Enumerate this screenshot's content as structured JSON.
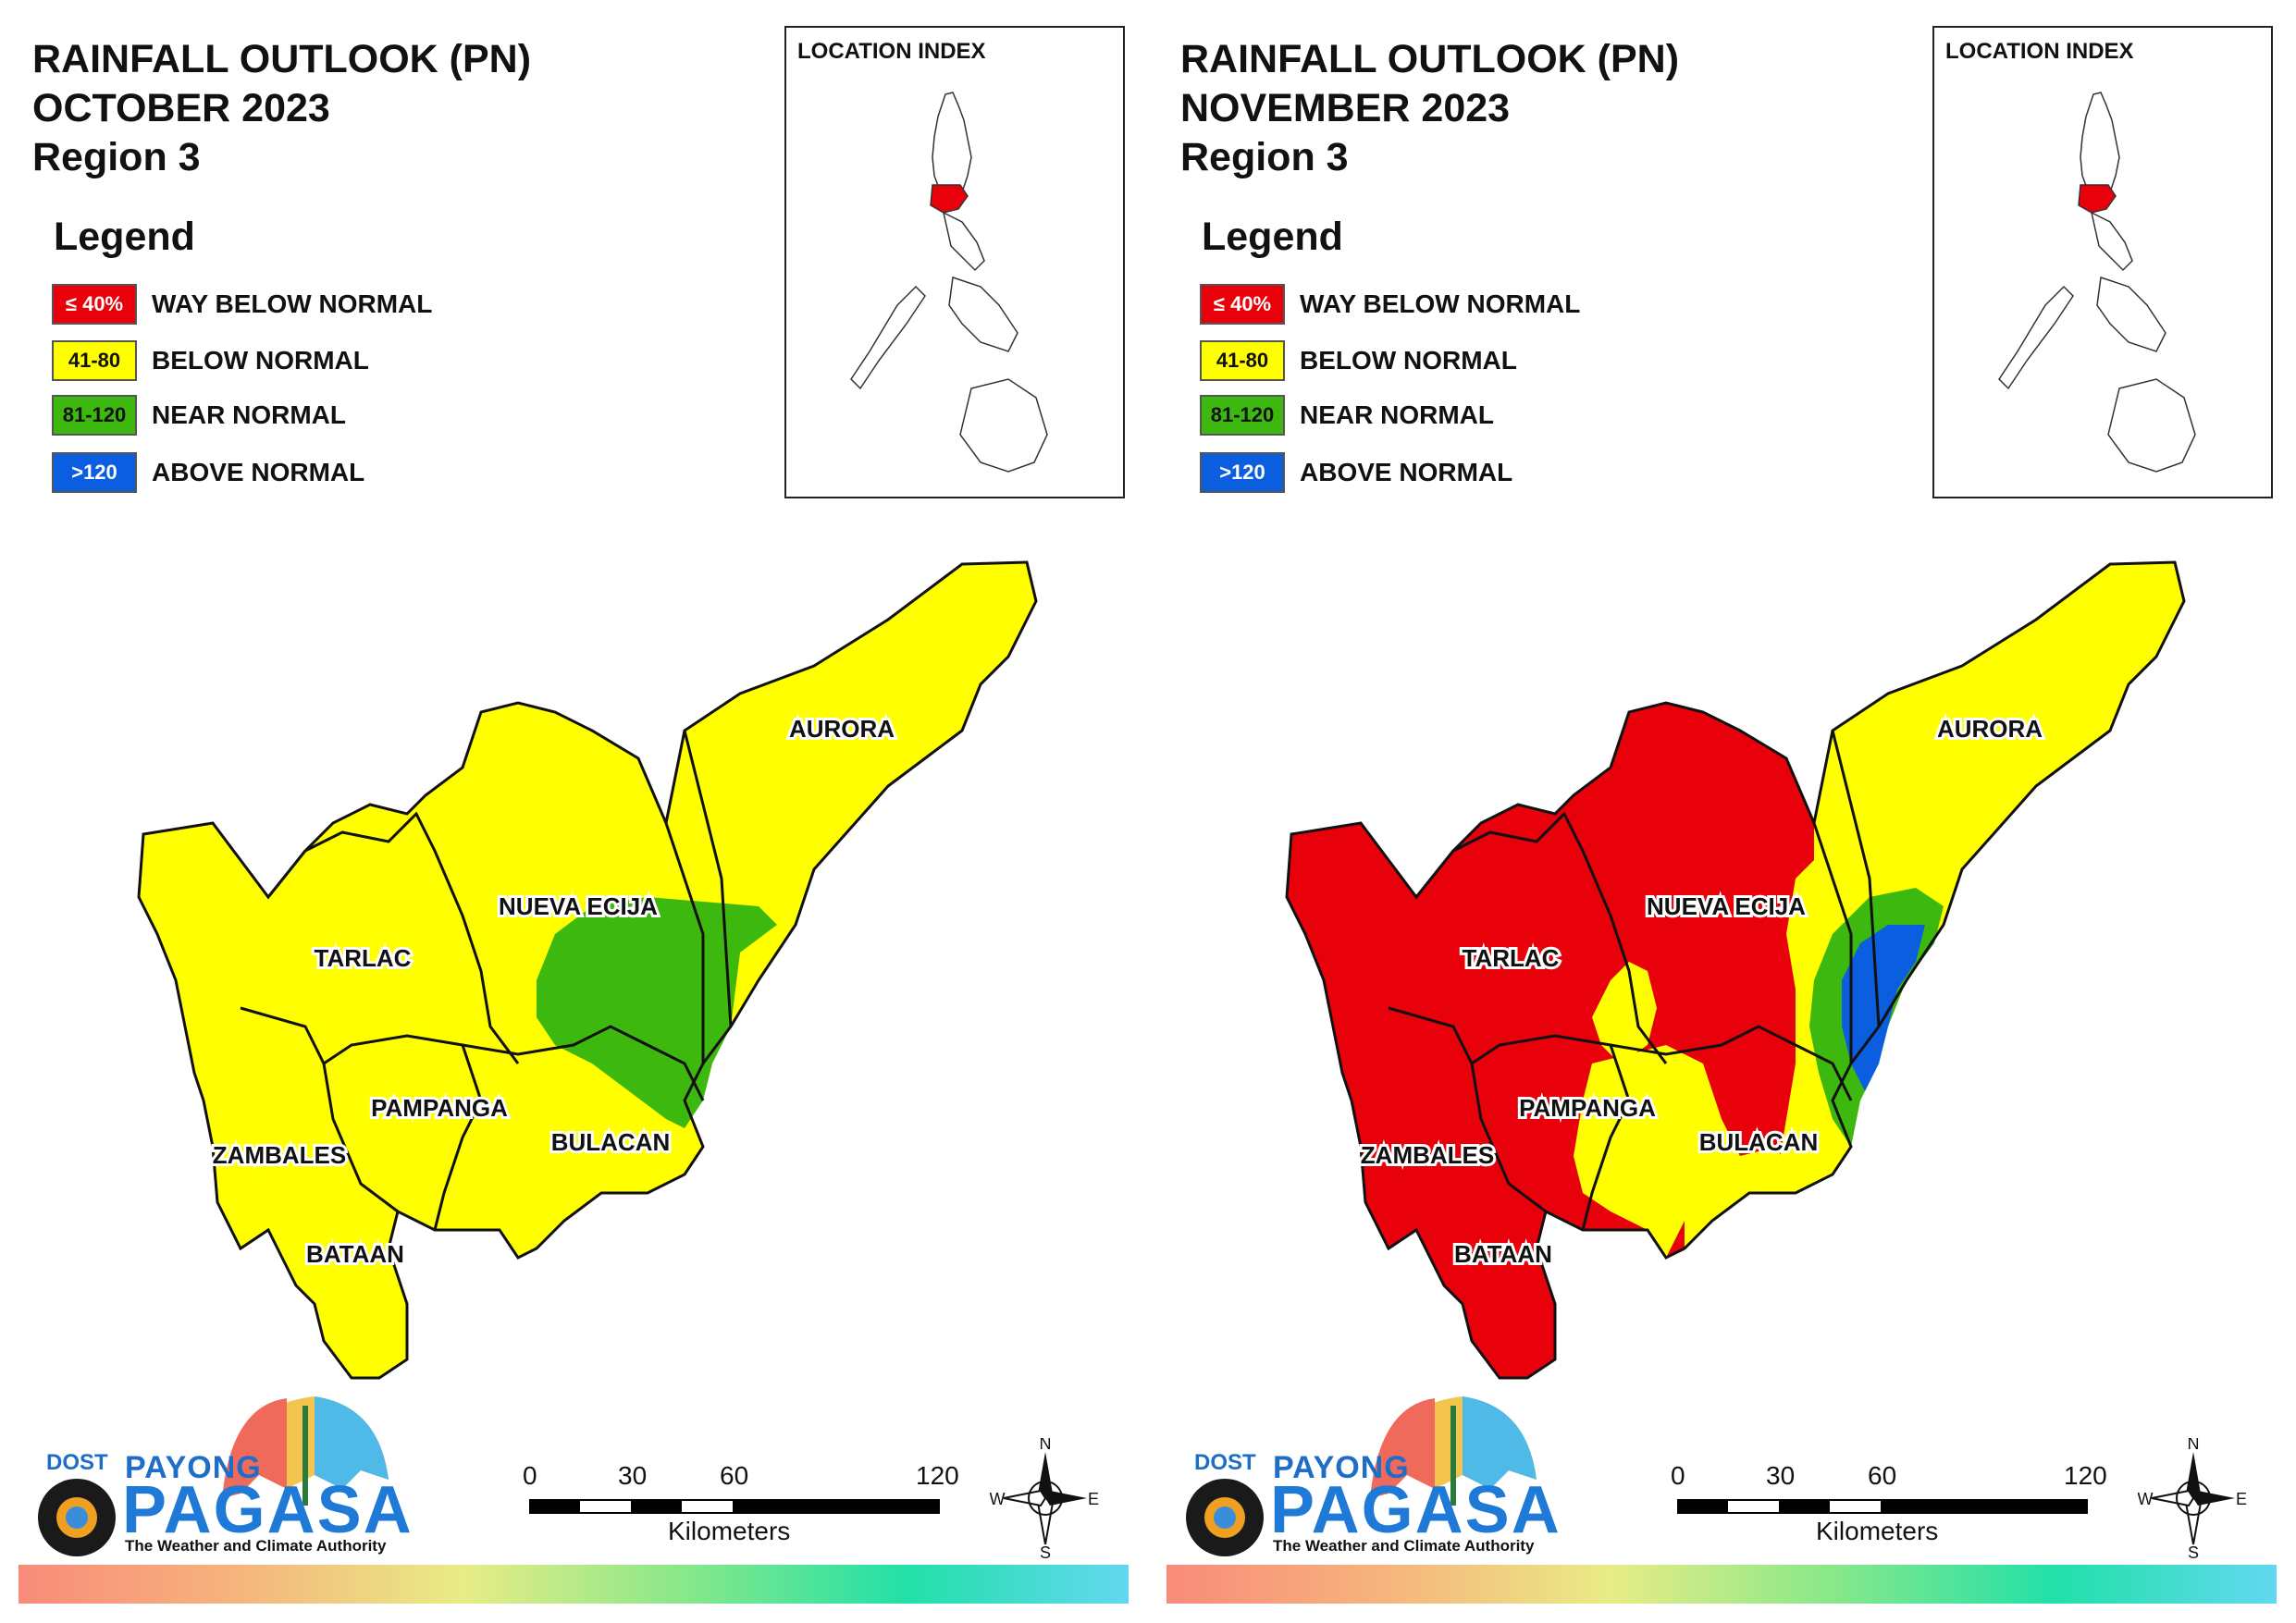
{
  "panels": [
    {
      "title_line1": "RAINFALL OUTLOOK (PN)",
      "title_line2": "OCTOBER 2023",
      "title_line3": "Region 3",
      "location_index_label": "LOCATION INDEX"
    },
    {
      "title_line1": "RAINFALL OUTLOOK (PN)",
      "title_line2": "NOVEMBER 2023",
      "title_line3": "Region 3",
      "location_index_label": "LOCATION INDEX"
    }
  ],
  "legend": {
    "title": "Legend",
    "items": [
      {
        "range": "≤ 40%",
        "label": "WAY BELOW NORMAL",
        "color": "#e8000b",
        "text_color": "#ffffff"
      },
      {
        "range": "41-80",
        "label": "BELOW NORMAL",
        "color": "#ffff00",
        "text_color": "#111111"
      },
      {
        "range": "81-120",
        "label": "NEAR NORMAL",
        "color": "#3cb80e",
        "text_color": "#111111"
      },
      {
        "range": ">120",
        "label": "ABOVE NORMAL",
        "color": "#0b5ee0",
        "text_color": "#ffffff"
      }
    ]
  },
  "provinces": {
    "aurora": "AURORA",
    "nueva_ecija": "NUEVA ECIJA",
    "tarlac": "TARLAC",
    "pampanga": "PAMPANGA",
    "bulacan": "BULACAN",
    "zambales": "ZAMBALES",
    "bataan": "BATAAN"
  },
  "scale_bar": {
    "ticks": [
      "0",
      "30",
      "60",
      "120"
    ],
    "unit": "Kilometers"
  },
  "compass": {
    "n": "N",
    "e": "E",
    "s": "S",
    "w": "W"
  },
  "logo": {
    "dost": "DOST",
    "payong": "PAYONG",
    "pagasa": "PAGASA",
    "tagline": "The Weather and Climate Authority"
  },
  "colors": {
    "way_below": "#e8000b",
    "below": "#ffff00",
    "near": "#3cb80e",
    "above": "#0b5ee0"
  }
}
